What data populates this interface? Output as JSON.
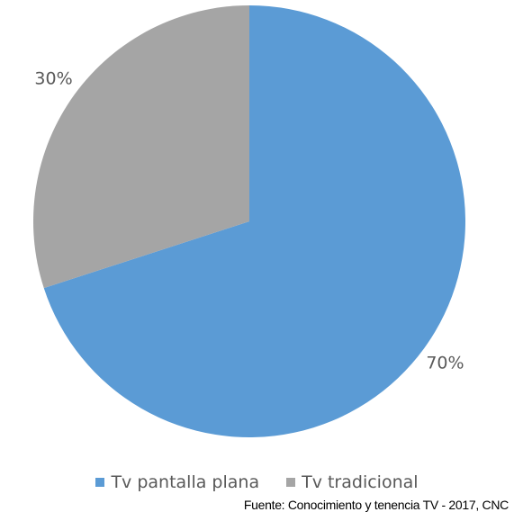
{
  "chart_data": {
    "type": "pie",
    "title": "",
    "categories": [
      "Tv pantalla plana",
      "Tv tradicional"
    ],
    "values": [
      70,
      30
    ],
    "data_labels": [
      "70%",
      "30%"
    ],
    "colors": [
      "#5b9bd5",
      "#a5a5a5"
    ],
    "start_angle_deg": 0,
    "direction": "clockwise",
    "legend_position": "bottom"
  },
  "legend": {
    "items": [
      {
        "label": "Tv pantalla plana",
        "color": "#5b9bd5"
      },
      {
        "label": "Tv tradicional",
        "color": "#a5a5a5"
      }
    ]
  },
  "source": {
    "text": "Fuente: Conocimiento y tenencia TV - 2017, CNC"
  }
}
